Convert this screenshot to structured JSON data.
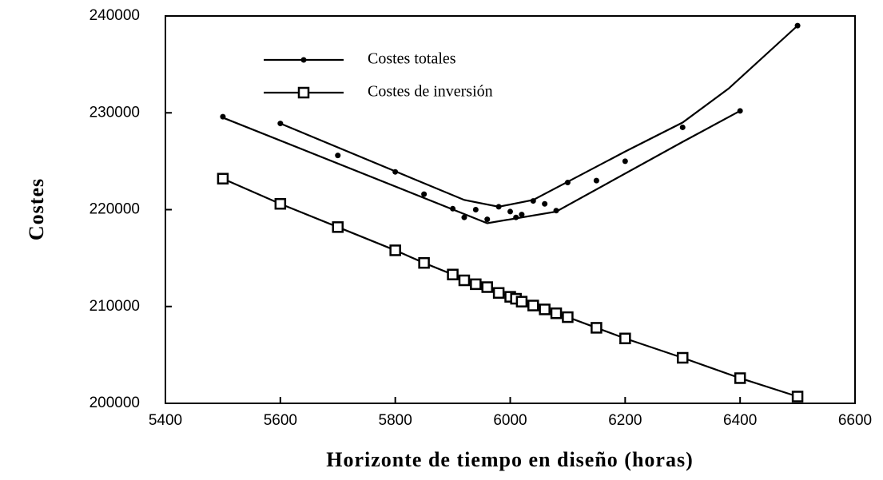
{
  "chart_data": {
    "type": "scatter-line",
    "xlabel": "Horizonte de tiempo en diseño (horas)",
    "ylabel": "Costes",
    "xlim": [
      5400,
      6600
    ],
    "xticks": [
      5400,
      5600,
      5800,
      6000,
      6200,
      6400,
      6600
    ],
    "ylim": [
      200000,
      240000
    ],
    "yticks": [
      200000,
      210000,
      220000,
      230000,
      240000
    ],
    "series": [
      {
        "name": "Costes totales",
        "color": "#000000",
        "marker": "dot",
        "x": [
          5500,
          5600,
          5700,
          5800,
          5850,
          5900,
          5920,
          5940,
          5960,
          5980,
          6000,
          6010,
          6020,
          6040,
          6060,
          6080,
          6100,
          6150,
          6200,
          6300,
          6400,
          6500
        ],
        "values": [
          229600,
          228900,
          225600,
          223900,
          221600,
          220100,
          219200,
          220000,
          219000,
          220300,
          219800,
          219200,
          219500,
          220900,
          220600,
          219900,
          222800,
          223000,
          225000,
          228500,
          230200,
          239000
        ],
        "curves": [
          {
            "x": [
              5600,
              5920,
              5980,
              6040,
              6200,
              6300,
              6380,
              6500
            ],
            "values": [
              228900,
              221000,
              220300,
              221000,
              226000,
              229000,
              232500,
              239000
            ]
          },
          {
            "x": [
              5500,
              5960,
              6080,
              6300,
              6400
            ],
            "values": [
              229500,
              218600,
              219800,
              227000,
              230200
            ]
          }
        ]
      },
      {
        "name": "Costes de inversión",
        "color": "#000000",
        "marker": "square",
        "x": [
          5500,
          5600,
          5700,
          5800,
          5850,
          5900,
          5920,
          5940,
          5960,
          5980,
          6000,
          6010,
          6020,
          6040,
          6060,
          6080,
          6100,
          6150,
          6200,
          6300,
          6400,
          6500
        ],
        "values": [
          223200,
          220600,
          218200,
          215800,
          214500,
          213300,
          212700,
          212300,
          212000,
          211400,
          211000,
          210800,
          210500,
          210100,
          209700,
          209300,
          208900,
          207800,
          206700,
          204700,
          202600,
          200700
        ]
      }
    ]
  }
}
